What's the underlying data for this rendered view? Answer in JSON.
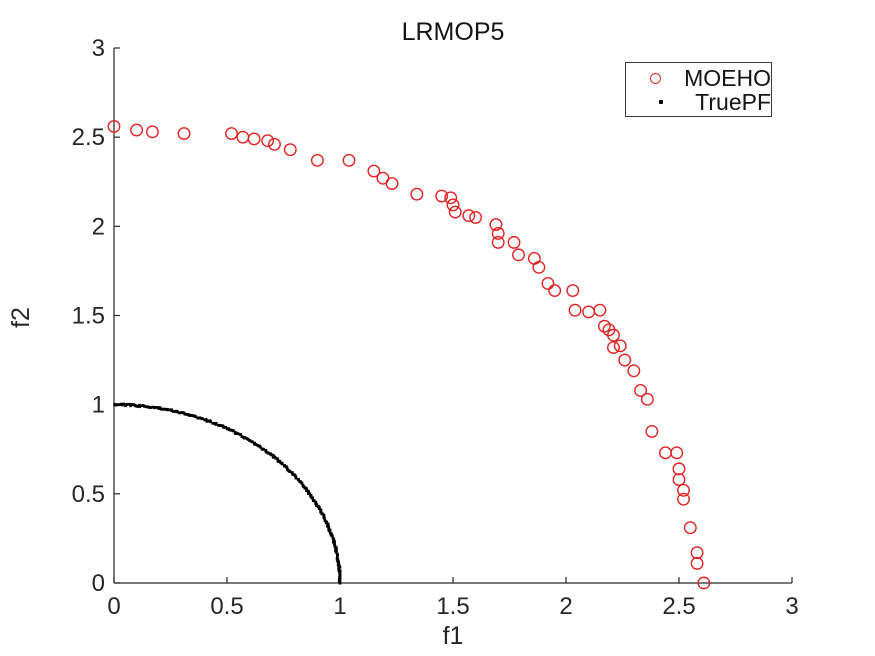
{
  "figure": {
    "title": "LRMOP5",
    "xlabel": "f1",
    "ylabel": "f2",
    "background_color": "#ffffff",
    "axis_color": "#262626",
    "tick_label_color": "#262626"
  },
  "legend": {
    "position": "northeast",
    "border_color": "#3b3b3b",
    "entries": [
      {
        "label": "MOEHO",
        "marker": "open-circle",
        "color": "#e02424"
      },
      {
        "label": "TruePF",
        "marker": "filled-dot",
        "color": "#000000"
      }
    ]
  },
  "chart_data": {
    "type": "scatter",
    "title": "LRMOP5",
    "xlabel": "f1",
    "ylabel": "f2",
    "xlim": [
      0,
      3
    ],
    "ylim": [
      0,
      3
    ],
    "x_ticks": [
      0,
      0.5,
      1,
      1.5,
      2,
      2.5,
      3
    ],
    "x_tick_labels": [
      "0",
      "0.5",
      "1",
      "1.5",
      "2",
      "2.5",
      "3"
    ],
    "y_ticks": [
      0,
      0.5,
      1,
      1.5,
      2,
      2.5,
      3
    ],
    "y_tick_labels": [
      "0",
      "0.5",
      "1",
      "1.5",
      "2",
      "2.5",
      "3"
    ],
    "grid": false,
    "box": "off",
    "tick_direction": "in",
    "legend_position": "northeast",
    "series": [
      {
        "name": "MOEHO",
        "marker": "open-circle",
        "color": "#e02424",
        "marker_diameter_px": 11.5,
        "points": [
          [
            0.0,
            2.56
          ],
          [
            0.1,
            2.54
          ],
          [
            0.17,
            2.53
          ],
          [
            0.31,
            2.52
          ],
          [
            0.52,
            2.52
          ],
          [
            0.57,
            2.5
          ],
          [
            0.62,
            2.49
          ],
          [
            0.68,
            2.48
          ],
          [
            0.71,
            2.46
          ],
          [
            0.78,
            2.43
          ],
          [
            0.9,
            2.37
          ],
          [
            1.04,
            2.37
          ],
          [
            1.15,
            2.31
          ],
          [
            1.19,
            2.27
          ],
          [
            1.23,
            2.24
          ],
          [
            1.34,
            2.18
          ],
          [
            1.45,
            2.17
          ],
          [
            1.49,
            2.16
          ],
          [
            1.5,
            2.12
          ],
          [
            1.51,
            2.08
          ],
          [
            1.57,
            2.06
          ],
          [
            1.6,
            2.05
          ],
          [
            1.69,
            2.01
          ],
          [
            1.7,
            1.96
          ],
          [
            1.7,
            1.91
          ],
          [
            1.77,
            1.91
          ],
          [
            1.79,
            1.84
          ],
          [
            1.86,
            1.82
          ],
          [
            1.88,
            1.77
          ],
          [
            1.92,
            1.68
          ],
          [
            1.95,
            1.64
          ],
          [
            2.03,
            1.64
          ],
          [
            2.04,
            1.53
          ],
          [
            2.1,
            1.52
          ],
          [
            2.15,
            1.53
          ],
          [
            2.17,
            1.44
          ],
          [
            2.19,
            1.42
          ],
          [
            2.21,
            1.39
          ],
          [
            2.21,
            1.32
          ],
          [
            2.24,
            1.33
          ],
          [
            2.26,
            1.25
          ],
          [
            2.3,
            1.19
          ],
          [
            2.33,
            1.08
          ],
          [
            2.36,
            1.03
          ],
          [
            2.38,
            0.85
          ],
          [
            2.44,
            0.73
          ],
          [
            2.49,
            0.73
          ],
          [
            2.5,
            0.64
          ],
          [
            2.5,
            0.58
          ],
          [
            2.52,
            0.52
          ],
          [
            2.52,
            0.47
          ],
          [
            2.55,
            0.31
          ],
          [
            2.58,
            0.17
          ],
          [
            2.58,
            0.11
          ],
          [
            2.61,
            0.0
          ]
        ]
      },
      {
        "name": "TruePF",
        "marker": "filled-dot",
        "color": "#000000",
        "marker_size_px": 2.8,
        "curve": "f1^2 + f2^2 = 1,  0 <= f1 <= 1",
        "generator": {
          "shape": "quarter-circle",
          "radius": 1,
          "center": [
            0,
            0
          ],
          "theta_deg_range": [
            0,
            90
          ],
          "n_points": 240
        }
      }
    ]
  }
}
